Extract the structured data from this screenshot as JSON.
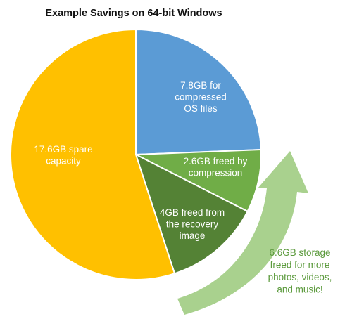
{
  "chart_data": {
    "type": "pie",
    "title": "Example Savings on 64-bit Windows",
    "unit": "GB",
    "slices": [
      {
        "value": 7.8,
        "label_lines": [
          "7.8GB for",
          "compressed",
          "OS files"
        ],
        "color": "#5b9bd5"
      },
      {
        "value": 2.6,
        "label_lines": [
          "2.6GB freed by",
          "compression"
        ],
        "color": "#70ad47"
      },
      {
        "value": 4.0,
        "label_lines": [
          "4GB freed from",
          "the recovery",
          "image"
        ],
        "color": "#548235"
      },
      {
        "value": 17.6,
        "label_lines": [
          "17.6GB spare",
          "capacity"
        ],
        "color": "#ffc000"
      }
    ],
    "callout": {
      "label_lines": [
        "6.6GB storage",
        "freed for more",
        "photos, videos,",
        "and music!"
      ],
      "color": "#5b9a3c",
      "arrow_color": "#a9d18e"
    }
  }
}
